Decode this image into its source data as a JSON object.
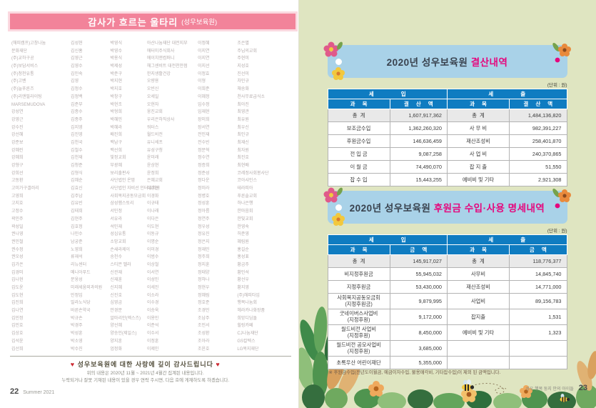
{
  "colors": {
    "left_banner_pink": "#f2839a",
    "right_banner_blue": "#a9d2e8",
    "table_header_blue": "#0f7cc1",
    "highlight_magenta": "#e5077d",
    "right_page_bg": "#dfe5c1"
  },
  "left_page": {
    "title": "감사가 흐르는 울타리",
    "title_suffix": "(성우보육원)",
    "donor_columns": [
      [
        "(해피캠프)고창나눔",
        "문화재단",
        "(주)교하구공",
        "(주)보담서비스",
        "(주)청천유통",
        "(주)고벤",
        "(주)늘푸른즈",
        "(주)리앤필라이팅",
        "MARSEMUDOVA",
        "강성연",
        "강영근",
        "강수진",
        "강선혜",
        "강준보",
        "강혜린",
        "강혜희",
        "강형구",
        "강희선",
        "고동환",
        "고미가구갤러리",
        "고영희",
        "고지호",
        "고정수",
        "곽민주",
        "곽성일",
        "권나영",
        "권민철",
        "권수정",
        "권오성",
        "김가은",
        "김경미",
        "김나현",
        "김도윤",
        "김도현",
        "김진희",
        "김나연",
        "김민정",
        "김민호",
        "김상호",
        "김석윤",
        "김선희"
      ],
      [
        "김성현",
        "김신홍",
        "김영근",
        "김영수",
        "김인숙",
        "김영",
        "김정수",
        "김정백",
        "김준부",
        "김종수",
        "김종주",
        "김지영",
        "김진영",
        "김천국",
        "김철수",
        "김천재",
        "김청준",
        "김형식",
        "김혜순",
        "김효신",
        "김주남",
        "김유빈",
        "김태희",
        "김현주",
        "김호정",
        "나민수",
        "남궁준",
        "노영희",
        "류재석",
        "리뉴센터",
        "메니아푸드",
        "문웅성",
        "미래세움외과의원",
        "민정임",
        "밀라노식당",
        "바른손약국",
        "박규손",
        "박경주",
        "박성훈",
        "박소영",
        "박수진"
      ],
      [
        "박영식",
        "박영수",
        "박용식",
        "박제성",
        "박준구",
        "박지현",
        "박지호",
        "박창구",
        "박현조",
        "박형희",
        "박혜민",
        "박혜라",
        "배진희",
        "백남구",
        "백선희",
        "빛정교회",
        "부광혜",
        "보리출판사",
        "사단법인 온맘",
        "사단법인 자비선 인터유치원",
        "사회복지공동모금회",
        "삼성햄스토리",
        "서민정",
        "서유라",
        "석민재",
        "성심유통",
        "소망교회",
        "손새라제이",
        "송천수",
        "스티븐 멜라",
        "신관재",
        "신재훈",
        "신지혜",
        "신진호",
        "심영금",
        "안경문",
        "알마리안(엑스즈)",
        "양선혜",
        "양승인(제일스)",
        "양지훈",
        "엄정화"
      ],
      [
        "아산나눔재단 대전지부",
        "애터미주식회사",
        "에이치앤컴퍼니",
        "헤그센비트 대전천안점",
        "한지생활건강",
        "오량용",
        "오빈신",
        "오세일",
        "오현자",
        "웅진교회",
        "우리은하직상사",
        "워터스",
        "월드비전",
        "유니세프",
        "유성구청",
        "윤미래",
        "윤상현",
        "윤정희",
        "은혜교회",
        "이강민",
        "이경화",
        "이규태",
        "이나래",
        "이다은",
        "이도현",
        "이동규",
        "이명순",
        "이미경",
        "이범수",
        "이상철",
        "이서연",
        "이성민",
        "이세진",
        "이소라",
        "이수경",
        "이승욱",
        "이용민",
        "이준석",
        "이수서",
        "이정훈",
        "이제인"
      ],
      [
        "이정혜",
        "이지연",
        "이지연",
        "이지선",
        "이정효",
        "이형",
        "이희준",
        "이혜정",
        "임수정",
        "임재현",
        "장미희",
        "장서연",
        "전민재",
        "전수빈",
        "정문혁",
        "정수연",
        "정증희",
        "정준성",
        "정다운",
        "정미라",
        "정병호",
        "정성훈",
        "정아름",
        "정연주",
        "정우성",
        "정유진",
        "정은지",
        "정재민",
        "정주희",
        "정지훈",
        "정태양",
        "정하나",
        "정현우",
        "정혜림",
        "정호준",
        "조경민",
        "조남주",
        "조민서",
        "조성환",
        "조아라",
        "조윤호"
      ],
      [
        "조은별",
        "주님의교회",
        "주현미",
        "지성호",
        "진선미",
        "차민규",
        "채송화",
        "천사무료급식소",
        "최아진",
        "최영관",
        "최유원",
        "최우신",
        "최인규",
        "최재신",
        "최자원",
        "최진호",
        "최현배",
        "코레정사회봉사단",
        "코아샤인스",
        "테라피아",
        "푸른솔교회",
        "하나은행",
        "한마음회",
        "한빛교회",
        "한영숙",
        "허준영",
        "혜림원",
        "홍길순",
        "홍성표",
        "황금주",
        "황민석",
        "황선우",
        "황지영",
        "(주)해피타임",
        "행복나눔회",
        "헤라카나화장품",
        "희망디딤돌",
        "힐링카페",
        "CJ나눔재단",
        "GS칼텍스",
        "LG복지재단"
      ]
    ],
    "heart": "♥",
    "thanks_heading": "성우보육원에 대한 사랑에 깊이 감사드립니다",
    "thanks_line1": "위의 내용은 2020년 11월 ~ 2021년 4월간 집계된 내용입니다.",
    "thanks_line2": "누락되거나 잘못 기재된 내용이 있을 경우 연락 주시면, 다음 호에 게재하도록 하겠습니다.",
    "page_number": "22",
    "footer_label": "Summer 2021"
  },
  "right_page": {
    "settlement": {
      "title_prefix": "2020년 성우보육원 ",
      "title_highlight": "결산내역",
      "unit_label": "(단위 : 원)",
      "group_headers": [
        "세 입",
        "세 출"
      ],
      "col_headers": [
        "과 목",
        "결 산 액",
        "과 목",
        "결 산 액"
      ],
      "table": {
        "rows": [
          [
            "총  계",
            "1,607,917,362",
            "총  계",
            "1,484,136,820"
          ],
          [
            "보조금수입",
            "1,362,260,320",
            "사 무 비",
            "982,391,227"
          ],
          [
            "후원금수입",
            "146,636,459",
            "재산조성비",
            "258,401,870"
          ],
          [
            "전 입 금",
            "9,087,258",
            "사 업 비",
            "240,370,865"
          ],
          [
            "이 월 금",
            "74,490,070",
            "잡 지 출",
            "51,550"
          ],
          [
            "잡 수 입",
            "15,443,255",
            "예비비 및 기타",
            "2,921,308"
          ]
        ]
      }
    },
    "donation": {
      "title_prefix": "2020년 성우보육원 ",
      "title_highlight": "후원금 수입·사용 명세내역",
      "unit_label": "(단위 : 원)",
      "group_headers": [
        "세 입",
        "세 출"
      ],
      "col_headers": [
        "과 목",
        "금 액",
        "과 목",
        "금 액"
      ],
      "table": {
        "rows": [
          [
            "총  계",
            "145,917,027",
            "총  계",
            "118,776,377"
          ],
          [
            "비지정후원금",
            "55,945,032",
            "사무비",
            "14,845,740"
          ],
          [
            "지정후원금",
            "53,430,000",
            "재산조성비",
            "14,771,000"
          ],
          [
            "사회복지공동모금회\n(지정후원금)",
            "9,879,995",
            "사업비",
            "89,156,783"
          ],
          [
            "굿네이버스사업비\n(지정후원)",
            "9,172,000",
            "잡지출",
            "1,531"
          ],
          [
            "월드비전 사업비\n(지정후원)",
            "8,450,000",
            "예비비 및 기타",
            "1,323"
          ],
          [
            "월드비전 공모사업비\n(지정후원)",
            "3,685,000",
            "",
            ""
          ],
          [
            "초록우산 어린이재단",
            "5,355,000",
            "",
            ""
          ]
        ]
      }
    },
    "footnote": "※ 후원금수입(전년도이월금, 예금이자수입, 불용매각비, 기타잡수입)이 제외 된 금액입니다.",
    "footer_label": "성우 행복 둥지 안의 아이들",
    "page_number": "23"
  }
}
